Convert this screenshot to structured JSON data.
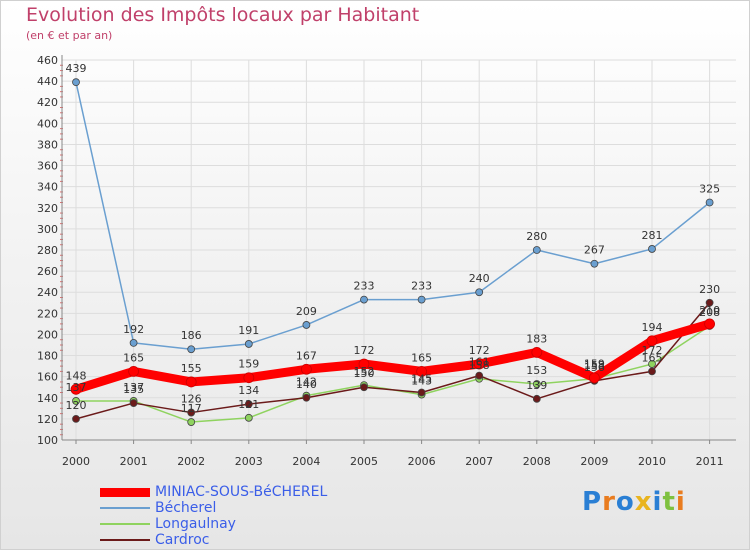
{
  "chart_data": {
    "type": "line",
    "title": "Evolution des Impôts locaux par Habitant",
    "subtitle": "(en € et par an)",
    "xlabel": "",
    "ylabel": "",
    "ylim": [
      100,
      460
    ],
    "yticks": [
      100,
      120,
      140,
      160,
      180,
      200,
      220,
      240,
      260,
      280,
      300,
      320,
      340,
      360,
      380,
      400,
      420,
      440,
      460
    ],
    "categories": [
      "2000",
      "2001",
      "2002",
      "2003",
      "2004",
      "2005",
      "2006",
      "2007",
      "2008",
      "2009",
      "2010",
      "2011"
    ],
    "series": [
      {
        "name": "MINIAC-SOUS-BéCHEREL",
        "color": "#ff0000",
        "values": [
          148,
          165,
          155,
          159,
          167,
          172,
          165,
          172,
          183,
          159,
          194,
          210
        ]
      },
      {
        "name": "Bécherel",
        "color": "#6a9fd0",
        "values": [
          439,
          192,
          186,
          191,
          209,
          233,
          233,
          240,
          280,
          267,
          281,
          325
        ]
      },
      {
        "name": "Longaulnay",
        "color": "#8fd35f",
        "values": [
          137,
          137,
          117,
          121,
          142,
          152,
          143,
          158,
          153,
          158,
          172,
          208
        ]
      },
      {
        "name": "Cardroc",
        "color": "#6b1a1a",
        "values": [
          120,
          135,
          126,
          134,
          140,
          150,
          145,
          161,
          139,
          156,
          165,
          230
        ]
      }
    ],
    "labels": [
      {
        "series": 0,
        "i": 0,
        "text": "148"
      },
      {
        "series": 0,
        "i": 1,
        "text": "165"
      },
      {
        "series": 0,
        "i": 2,
        "text": "155"
      },
      {
        "series": 0,
        "i": 3,
        "text": "159"
      },
      {
        "series": 0,
        "i": 4,
        "text": "167"
      },
      {
        "series": 0,
        "i": 5,
        "text": "172"
      },
      {
        "series": 0,
        "i": 6,
        "text": "165"
      },
      {
        "series": 0,
        "i": 7,
        "text": "172"
      },
      {
        "series": 0,
        "i": 8,
        "text": "183"
      },
      {
        "series": 0,
        "i": 9,
        "text": "159"
      },
      {
        "series": 0,
        "i": 10,
        "text": "194"
      },
      {
        "series": 0,
        "i": 11,
        "text": "210"
      },
      {
        "series": 1,
        "i": 0,
        "text": "439"
      },
      {
        "series": 1,
        "i": 1,
        "text": "192"
      },
      {
        "series": 1,
        "i": 2,
        "text": "186"
      },
      {
        "series": 1,
        "i": 3,
        "text": "191"
      },
      {
        "series": 1,
        "i": 4,
        "text": "209"
      },
      {
        "series": 1,
        "i": 5,
        "text": "233"
      },
      {
        "series": 1,
        "i": 6,
        "text": "233"
      },
      {
        "series": 1,
        "i": 7,
        "text": "240"
      },
      {
        "series": 1,
        "i": 8,
        "text": "280"
      },
      {
        "series": 1,
        "i": 9,
        "text": "267"
      },
      {
        "series": 1,
        "i": 10,
        "text": "281"
      },
      {
        "series": 1,
        "i": 11,
        "text": "325"
      },
      {
        "series": 2,
        "i": 0,
        "text": "137"
      },
      {
        "series": 2,
        "i": 1,
        "text": "137"
      },
      {
        "series": 2,
        "i": 2,
        "text": "117"
      },
      {
        "series": 2,
        "i": 3,
        "text": "121"
      },
      {
        "series": 2,
        "i": 4,
        "text": "142"
      },
      {
        "series": 2,
        "i": 5,
        "text": "152"
      },
      {
        "series": 2,
        "i": 6,
        "text": "143"
      },
      {
        "series": 2,
        "i": 7,
        "text": "158"
      },
      {
        "series": 2,
        "i": 8,
        "text": "153"
      },
      {
        "series": 2,
        "i": 9,
        "text": "158"
      },
      {
        "series": 2,
        "i": 10,
        "text": "172"
      },
      {
        "series": 2,
        "i": 11,
        "text": "208"
      },
      {
        "series": 3,
        "i": 0,
        "text": "120"
      },
      {
        "series": 3,
        "i": 1,
        "text": "135"
      },
      {
        "series": 3,
        "i": 2,
        "text": "126"
      },
      {
        "series": 3,
        "i": 3,
        "text": "134"
      },
      {
        "series": 3,
        "i": 4,
        "text": "140"
      },
      {
        "series": 3,
        "i": 5,
        "text": "150"
      },
      {
        "series": 3,
        "i": 6,
        "text": "145"
      },
      {
        "series": 3,
        "i": 7,
        "text": "161"
      },
      {
        "series": 3,
        "i": 8,
        "text": "139"
      },
      {
        "series": 3,
        "i": 9,
        "text": "156"
      },
      {
        "series": 3,
        "i": 10,
        "text": "165"
      },
      {
        "series": 3,
        "i": 11,
        "text": "230"
      }
    ]
  },
  "logo": {
    "letters": [
      "P",
      "r",
      "o",
      "x",
      "i",
      "t",
      "i"
    ],
    "colors": [
      "#2a7fd4",
      "#e97c1f",
      "#2a7fd4",
      "#e9b41f",
      "#2a7fd4",
      "#7fc13f",
      "#e97c1f"
    ]
  }
}
